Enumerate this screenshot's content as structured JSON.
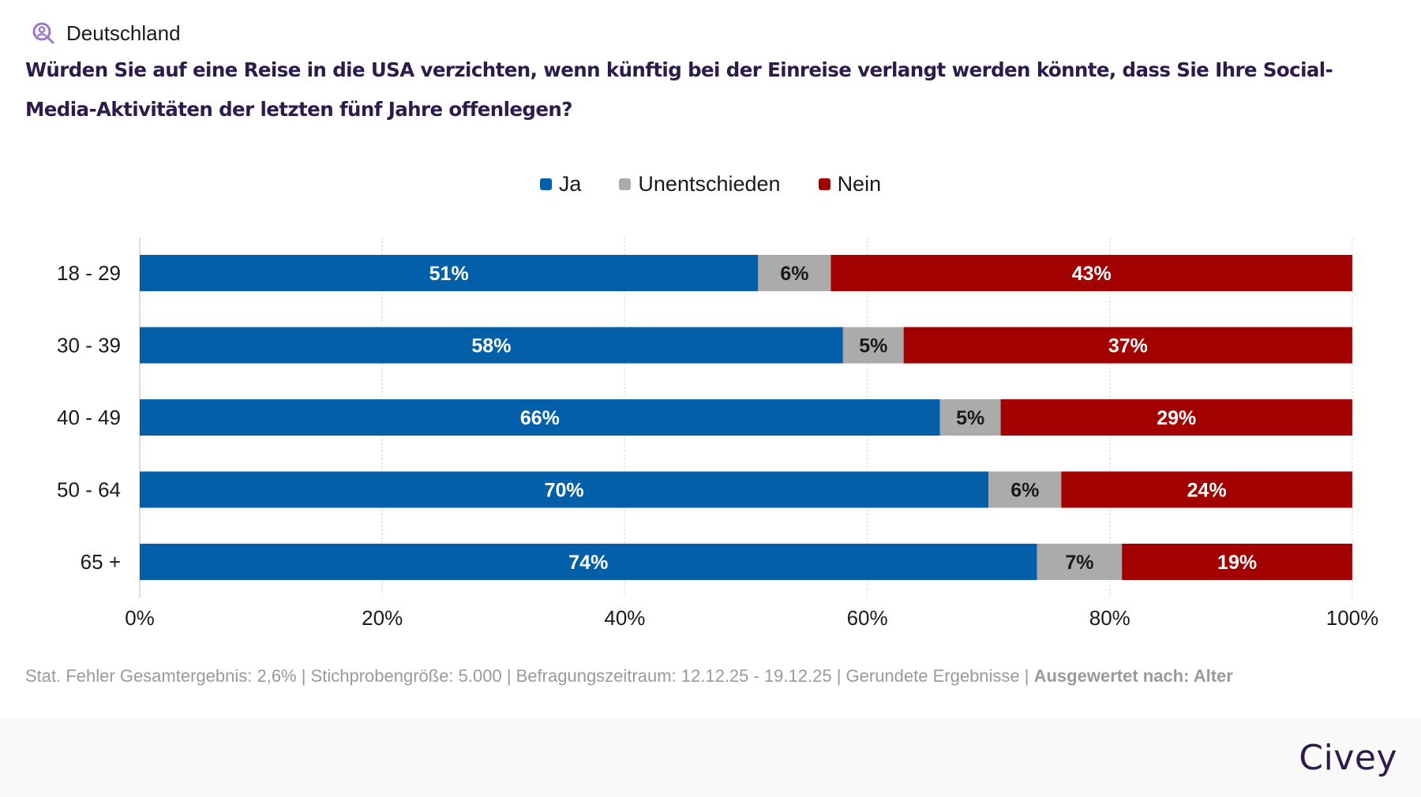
{
  "header": {
    "region_icon": "person-search-icon",
    "region": "Deutschland",
    "question": "Würden Sie auf eine Reise in die USA verzichten, wenn künftig bei der Einreise verlangt werden könnte, dass Sie Ihre Social-Media-Aktivitäten der letzten fünf Jahre offenlegen?"
  },
  "colors": {
    "ja": "#0360a8",
    "unentschieden": "#ababab",
    "nein": "#a30000",
    "title": "#2d1c4a",
    "icon": "#9c77c4"
  },
  "chart_data": {
    "type": "bar",
    "orientation": "horizontal",
    "stacked": true,
    "title": "Würden Sie auf eine Reise in die USA verzichten, wenn künftig bei der Einreise verlangt werden könnte, dass Sie Ihre Social-Media-Aktivitäten der letzten fünf Jahre offenlegen?",
    "categories": [
      "18 - 29",
      "30 - 39",
      "40 - 49",
      "50 - 64",
      "65 +"
    ],
    "series": [
      {
        "name": "Ja",
        "color": "#0360a8",
        "label_color": "#ffffff",
        "values": [
          51,
          58,
          66,
          70,
          74
        ]
      },
      {
        "name": "Unentschieden",
        "color": "#ababab",
        "label_color": "#1a1a1a",
        "values": [
          6,
          5,
          5,
          6,
          7
        ]
      },
      {
        "name": "Nein",
        "color": "#a30000",
        "label_color": "#ffffff",
        "values": [
          43,
          37,
          29,
          24,
          19
        ]
      }
    ],
    "xlim": [
      0,
      100
    ],
    "xticks": [
      0,
      20,
      40,
      60,
      80,
      100
    ],
    "xtick_labels": [
      "0%",
      "20%",
      "40%",
      "60%",
      "80%",
      "100%"
    ],
    "value_suffix": "%",
    "xlabel": "",
    "ylabel": "",
    "grid": "vertical-dotted",
    "legend_position": "top-center"
  },
  "legend": [
    {
      "label": "Ja",
      "color": "#0360a8"
    },
    {
      "label": "Unentschieden",
      "color": "#ababab"
    },
    {
      "label": "Nein",
      "color": "#a30000"
    }
  ],
  "footer": {
    "note": "Stat. Fehler Gesamtergebnis: 2,6% | Stichprobengröße: 5.000 | Befragungszeitraum: 12.12.25 - 19.12.25 | Gerundete Ergebnisse | ",
    "note_bold": "Ausgewertet nach: Alter",
    "brand": "Civey"
  }
}
